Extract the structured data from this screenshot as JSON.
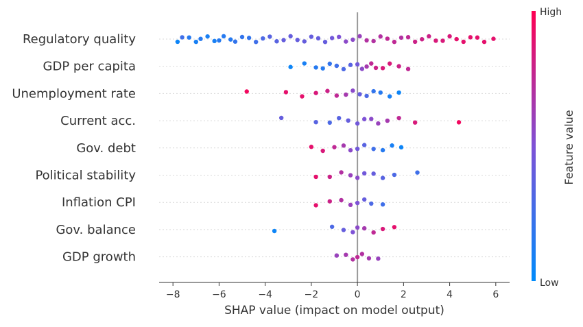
{
  "chart_data": {
    "type": "scatter",
    "subtype": "shap-beeswarm",
    "title": "",
    "xlabel": "SHAP value (impact on model output)",
    "ylabel": "",
    "xlim": [
      -8.6,
      6.6
    ],
    "xticks": [
      -8,
      -6,
      -4,
      -2,
      0,
      2,
      4,
      6
    ],
    "xtick_labels": [
      "−8",
      "−6",
      "−4",
      "−2",
      "0",
      "2",
      "4",
      "6"
    ],
    "zero_line": true,
    "grid": false,
    "colorbar": {
      "title": "Feature value",
      "high_label": "High",
      "low_label": "Low",
      "low_color": "#008bfb",
      "high_color": "#ff0052"
    },
    "features": [
      {
        "name": "Regulatory quality",
        "range": [
          -7.8,
          5.9
        ],
        "points": [
          [
            -7.8,
            0.05
          ],
          [
            -7.6,
            0.25
          ],
          [
            -7.3,
            0.15
          ],
          [
            -7.0,
            0.1
          ],
          [
            -6.8,
            0.15
          ],
          [
            -6.5,
            0.1
          ],
          [
            -6.2,
            0.1
          ],
          [
            -6.0,
            0.15
          ],
          [
            -5.8,
            0.15
          ],
          [
            -5.5,
            0.15
          ],
          [
            -5.3,
            0.2
          ],
          [
            -5.0,
            0.2
          ],
          [
            -4.7,
            0.2
          ],
          [
            -4.4,
            0.25
          ],
          [
            -4.1,
            0.3
          ],
          [
            -3.8,
            0.35
          ],
          [
            -3.5,
            0.35
          ],
          [
            -3.2,
            0.4
          ],
          [
            -2.9,
            0.4
          ],
          [
            -2.6,
            0.4
          ],
          [
            -2.3,
            0.4
          ],
          [
            -2.0,
            0.4
          ],
          [
            -1.7,
            0.4
          ],
          [
            -1.4,
            0.4
          ],
          [
            -1.1,
            0.45
          ],
          [
            -0.8,
            0.5
          ],
          [
            -0.5,
            0.55
          ],
          [
            -0.2,
            0.55
          ],
          [
            0.1,
            0.6
          ],
          [
            0.4,
            0.7
          ],
          [
            0.7,
            0.7
          ],
          [
            1.0,
            0.7
          ],
          [
            1.3,
            0.75
          ],
          [
            1.6,
            0.75
          ],
          [
            1.9,
            0.7
          ],
          [
            2.2,
            0.75
          ],
          [
            2.5,
            0.8
          ],
          [
            2.8,
            0.8
          ],
          [
            3.1,
            0.8
          ],
          [
            3.4,
            0.85
          ],
          [
            3.7,
            0.85
          ],
          [
            4.0,
            0.85
          ],
          [
            4.3,
            0.9
          ],
          [
            4.6,
            0.9
          ],
          [
            4.9,
            0.9
          ],
          [
            5.2,
            0.9
          ],
          [
            5.5,
            0.9
          ],
          [
            5.9,
            0.9
          ]
        ]
      },
      {
        "name": "GDP per capita",
        "range": [
          -2.9,
          2.2
        ],
        "points": [
          [
            -2.9,
            0.05
          ],
          [
            -2.3,
            0.1
          ],
          [
            -1.8,
            0.15
          ],
          [
            -1.5,
            0.15
          ],
          [
            -1.2,
            0.2
          ],
          [
            -0.9,
            0.25
          ],
          [
            -0.6,
            0.3
          ],
          [
            -0.3,
            0.35
          ],
          [
            0.0,
            0.45
          ],
          [
            0.2,
            0.55
          ],
          [
            0.4,
            0.65
          ],
          [
            0.6,
            0.75
          ],
          [
            0.8,
            0.8
          ],
          [
            1.1,
            0.85
          ],
          [
            1.4,
            0.85
          ],
          [
            1.8,
            0.8
          ],
          [
            2.2,
            0.75
          ]
        ]
      },
      {
        "name": "Unemployment rate",
        "range": [
          -4.8,
          1.8
        ],
        "points": [
          [
            -4.8,
            0.95
          ],
          [
            -3.1,
            0.9
          ],
          [
            -2.4,
            0.9
          ],
          [
            -1.8,
            0.85
          ],
          [
            -1.3,
            0.8
          ],
          [
            -0.9,
            0.75
          ],
          [
            -0.5,
            0.65
          ],
          [
            -0.2,
            0.55
          ],
          [
            0.1,
            0.4
          ],
          [
            0.4,
            0.3
          ],
          [
            0.7,
            0.2
          ],
          [
            1.0,
            0.15
          ],
          [
            1.4,
            0.1
          ],
          [
            1.8,
            0.05
          ]
        ]
      },
      {
        "name": "Current acc.",
        "range": [
          -3.3,
          4.4
        ],
        "points": [
          [
            -3.3,
            0.4
          ],
          [
            -1.8,
            0.35
          ],
          [
            -1.2,
            0.3
          ],
          [
            -0.8,
            0.35
          ],
          [
            -0.4,
            0.4
          ],
          [
            0.0,
            0.45
          ],
          [
            0.3,
            0.5
          ],
          [
            0.6,
            0.55
          ],
          [
            0.9,
            0.6
          ],
          [
            1.3,
            0.65
          ],
          [
            1.8,
            0.75
          ],
          [
            2.5,
            0.85
          ],
          [
            4.4,
            0.95
          ]
        ]
      },
      {
        "name": "Gov. debt",
        "range": [
          -2.0,
          1.9
        ],
        "points": [
          [
            -2.0,
            0.9
          ],
          [
            -1.5,
            0.85
          ],
          [
            -1.0,
            0.75
          ],
          [
            -0.6,
            0.65
          ],
          [
            -0.3,
            0.55
          ],
          [
            0.0,
            0.45
          ],
          [
            0.3,
            0.35
          ],
          [
            0.7,
            0.25
          ],
          [
            1.1,
            0.15
          ],
          [
            1.5,
            0.1
          ],
          [
            1.9,
            0.05
          ]
        ]
      },
      {
        "name": "Political stability",
        "range": [
          -1.8,
          2.6
        ],
        "points": [
          [
            -1.8,
            0.9
          ],
          [
            -1.2,
            0.8
          ],
          [
            -0.7,
            0.7
          ],
          [
            -0.3,
            0.6
          ],
          [
            0.0,
            0.55
          ],
          [
            0.3,
            0.45
          ],
          [
            0.7,
            0.4
          ],
          [
            1.1,
            0.35
          ],
          [
            1.6,
            0.3
          ],
          [
            2.6,
            0.25
          ]
        ]
      },
      {
        "name": "Inflation CPI",
        "range": [
          -1.8,
          1.1
        ],
        "points": [
          [
            -1.8,
            0.9
          ],
          [
            -1.2,
            0.8
          ],
          [
            -0.7,
            0.7
          ],
          [
            -0.3,
            0.6
          ],
          [
            0.0,
            0.5
          ],
          [
            0.3,
            0.4
          ],
          [
            0.6,
            0.3
          ],
          [
            1.1,
            0.25
          ]
        ]
      },
      {
        "name": "Gov. balance",
        "range": [
          -3.6,
          1.6
        ],
        "points": [
          [
            -3.6,
            0.05
          ],
          [
            -1.1,
            0.3
          ],
          [
            -0.6,
            0.4
          ],
          [
            -0.2,
            0.5
          ],
          [
            0.0,
            0.55
          ],
          [
            0.3,
            0.65
          ],
          [
            0.7,
            0.75
          ],
          [
            1.1,
            0.85
          ],
          [
            1.6,
            0.9
          ]
        ]
      },
      {
        "name": "GDP growth",
        "range": [
          -0.9,
          0.9
        ],
        "points": [
          [
            -0.9,
            0.6
          ],
          [
            -0.5,
            0.65
          ],
          [
            -0.2,
            0.7
          ],
          [
            0.0,
            0.75
          ],
          [
            0.2,
            0.7
          ],
          [
            0.5,
            0.65
          ],
          [
            0.9,
            0.6
          ]
        ]
      }
    ]
  }
}
